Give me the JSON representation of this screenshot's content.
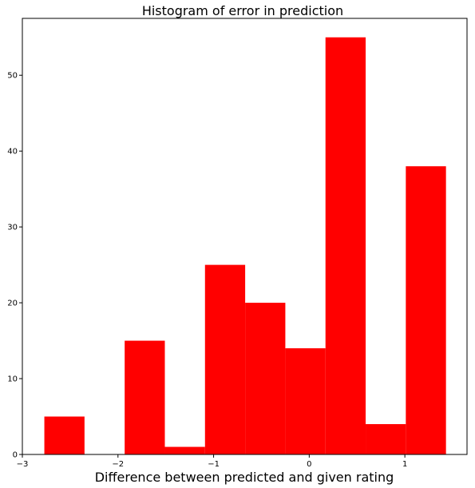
{
  "chart_data": {
    "type": "bar",
    "title": "Histogram of error in prediction",
    "xlabel": "Difference between predicted and given rating",
    "ylabel": "",
    "xlim": [
      -3,
      1.65
    ],
    "ylim": [
      0,
      57.5
    ],
    "bin_edges": [
      -2.77,
      -2.35,
      -1.93,
      -1.51,
      -1.09,
      -0.67,
      -0.25,
      0.17,
      0.59,
      1.01,
      1.43
    ],
    "values": [
      5,
      0,
      15,
      1,
      25,
      20,
      14,
      55,
      4,
      38
    ],
    "xticks": [
      -3,
      -2,
      -1,
      0,
      1
    ],
    "xtick_labels": [
      "−3",
      "−2",
      "−1",
      "0",
      "1"
    ],
    "yticks": [
      0,
      10,
      20,
      30,
      40,
      50
    ],
    "ytick_labels": [
      "0",
      "10",
      "20",
      "30",
      "40",
      "50"
    ],
    "bar_color": "#ff0000",
    "grid": false,
    "legend": "none"
  }
}
